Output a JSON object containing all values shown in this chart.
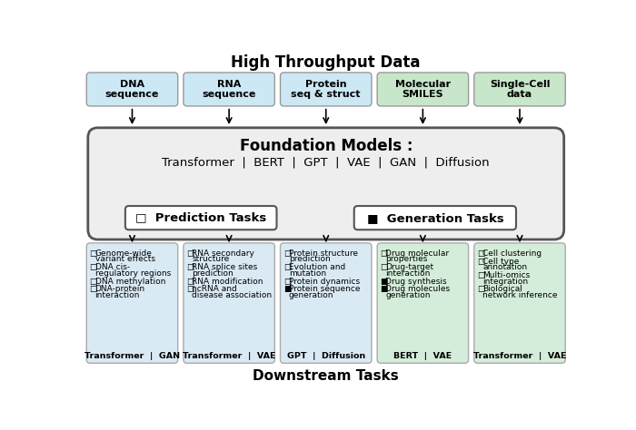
{
  "title_top": "High Throughput Data",
  "title_bottom": "Downstream Tasks",
  "bg_color": "#ffffff",
  "top_boxes": [
    {
      "label": "DNA\nsequence",
      "color": "#cce8f4",
      "border": "#999999"
    },
    {
      "label": "RNA\nsequence",
      "color": "#cce8f4",
      "border": "#999999"
    },
    {
      "label": "Protein\nseq & struct",
      "color": "#cce8f4",
      "border": "#999999"
    },
    {
      "label": "Molecular\nSMILES",
      "color": "#c8e6c9",
      "border": "#999999"
    },
    {
      "label": "Single-Cell\ndata",
      "color": "#c8e6c9",
      "border": "#999999"
    }
  ],
  "foundation_box": {
    "color": "#eeeeee",
    "border": "#555555",
    "title": "Foundation Models :",
    "subtitle": "Transformer  |  BERT  |  GPT  |  VAE  |  GAN  |  Diffusion"
  },
  "pred_box": {
    "label": "□  Prediction Tasks"
  },
  "gen_box": {
    "label": "■  Generation Tasks"
  },
  "bottom_boxes": [
    {
      "color": "#daeaf5",
      "border": "#aaaaaa",
      "items": [
        {
          "sym": "□",
          "text": "Genome-wide\nvariant effects"
        },
        {
          "sym": "□",
          "text": "DNA cis-\nregulatory regions"
        },
        {
          "sym": "□",
          "text": "DNA methylation"
        },
        {
          "sym": "□",
          "text": "DNA-protein\ninteraction"
        }
      ],
      "footer": "Transformer  |  GAN"
    },
    {
      "color": "#daeaf5",
      "border": "#aaaaaa",
      "items": [
        {
          "sym": "□",
          "text": "RNA secondary\nstructure"
        },
        {
          "sym": "□",
          "text": "RNA splice sites\nprediction"
        },
        {
          "sym": "□",
          "text": "RNA modification"
        },
        {
          "sym": "□",
          "text": "ncRNA and\ndisease association"
        }
      ],
      "footer": "Transformer  |  VAE"
    },
    {
      "color": "#daeaf5",
      "border": "#aaaaaa",
      "items": [
        {
          "sym": "□",
          "text": "Protein structure\nprediction"
        },
        {
          "sym": "□",
          "text": "Evolution and\nmutation"
        },
        {
          "sym": "□",
          "text": "Protein dynamics"
        },
        {
          "sym": "■",
          "text": "Protein sequence\ngeneration"
        }
      ],
      "footer": "GPT  |  Diffusion"
    },
    {
      "color": "#d4edda",
      "border": "#aaaaaa",
      "items": [
        {
          "sym": "□",
          "text": "Drug molecular\nproperties"
        },
        {
          "sym": "□",
          "text": "Drug-target\ninteraction"
        },
        {
          "sym": "■",
          "text": "Drug synthesis"
        },
        {
          "sym": "■",
          "text": "Drug molecules\ngeneration"
        }
      ],
      "footer": "BERT  |  VAE"
    },
    {
      "color": "#d4edda",
      "border": "#aaaaaa",
      "items": [
        {
          "sym": "□",
          "text": "Cell clustering"
        },
        {
          "sym": "□",
          "text": "Cell type\nannotation"
        },
        {
          "sym": "□",
          "text": "Multi-omics\nintegration"
        },
        {
          "sym": "□",
          "text": "Biological\nnetwork inference"
        }
      ],
      "footer": "Transformer  |  VAE"
    }
  ]
}
